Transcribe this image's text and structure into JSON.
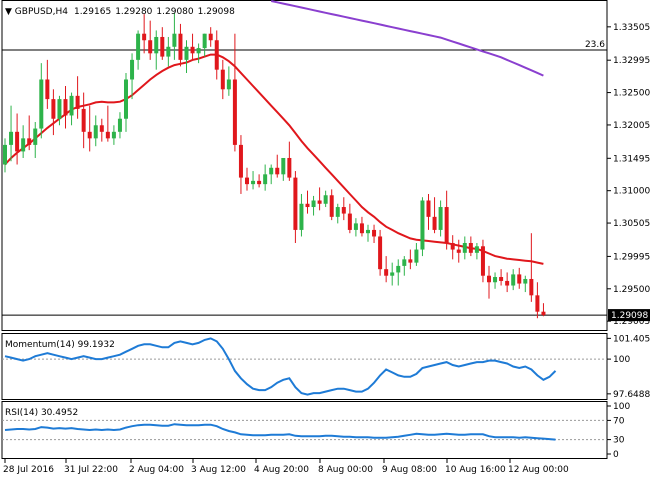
{
  "header": {
    "symbol": "GBPUSD,H4",
    "open": "1.29165",
    "high": "1.29280",
    "low": "1.29080",
    "close": "1.29098"
  },
  "colors": {
    "bull": "#2db34a",
    "bear": "#e0171c",
    "ma_fast": "#e0171c",
    "ma_slow": "#8a3fcf",
    "oscillator": "#1e7bd6",
    "level_line": "#000000",
    "dotted": "#9a9a9a"
  },
  "chart_data": [
    {
      "type": "candlestick",
      "title": "GBPUSD,H4  1.29165 1.29280 1.29080 1.29098",
      "ylim": [
        1.2887,
        1.339
      ],
      "y_ticks": [
        "1.33505",
        "1.32995",
        "1.32500",
        "1.32005",
        "1.31495",
        "1.31000",
        "1.30505",
        "1.29995",
        "1.29500",
        "1.29005"
      ],
      "current_price_label": "1.29098",
      "current_price": 1.29098,
      "fib_label": "23.6",
      "fib_level": 1.3315,
      "candles": [
        {
          "o": 1.314,
          "h": 1.318,
          "l": 1.3128,
          "c": 1.317
        },
        {
          "o": 1.317,
          "h": 1.323,
          "l": 1.3145,
          "c": 1.319
        },
        {
          "o": 1.319,
          "h": 1.3218,
          "l": 1.314,
          "c": 1.316
        },
        {
          "o": 1.316,
          "h": 1.32,
          "l": 1.315,
          "c": 1.318
        },
        {
          "o": 1.318,
          "h": 1.3215,
          "l": 1.3162,
          "c": 1.317
        },
        {
          "o": 1.317,
          "h": 1.3205,
          "l": 1.315,
          "c": 1.3195
        },
        {
          "o": 1.3195,
          "h": 1.3295,
          "l": 1.318,
          "c": 1.327
        },
        {
          "o": 1.327,
          "h": 1.33,
          "l": 1.3225,
          "c": 1.324
        },
        {
          "o": 1.324,
          "h": 1.3255,
          "l": 1.3185,
          "c": 1.321
        },
        {
          "o": 1.321,
          "h": 1.3245,
          "l": 1.32,
          "c": 1.324
        },
        {
          "o": 1.324,
          "h": 1.326,
          "l": 1.3195,
          "c": 1.3215
        },
        {
          "o": 1.3215,
          "h": 1.325,
          "l": 1.32,
          "c": 1.3245
        },
        {
          "o": 1.3245,
          "h": 1.3275,
          "l": 1.321,
          "c": 1.3225
        },
        {
          "o": 1.3225,
          "h": 1.325,
          "l": 1.3165,
          "c": 1.319
        },
        {
          "o": 1.319,
          "h": 1.323,
          "l": 1.316,
          "c": 1.318
        },
        {
          "o": 1.318,
          "h": 1.3215,
          "l": 1.3168,
          "c": 1.32
        },
        {
          "o": 1.32,
          "h": 1.321,
          "l": 1.3175,
          "c": 1.319
        },
        {
          "o": 1.319,
          "h": 1.323,
          "l": 1.3175,
          "c": 1.318
        },
        {
          "o": 1.318,
          "h": 1.32,
          "l": 1.317,
          "c": 1.319
        },
        {
          "o": 1.319,
          "h": 1.322,
          "l": 1.318,
          "c": 1.321
        },
        {
          "o": 1.321,
          "h": 1.328,
          "l": 1.319,
          "c": 1.327
        },
        {
          "o": 1.327,
          "h": 1.331,
          "l": 1.324,
          "c": 1.33
        },
        {
          "o": 1.33,
          "h": 1.3345,
          "l": 1.3285,
          "c": 1.334
        },
        {
          "o": 1.334,
          "h": 1.337,
          "l": 1.331,
          "c": 1.333
        },
        {
          "o": 1.333,
          "h": 1.336,
          "l": 1.33,
          "c": 1.331
        },
        {
          "o": 1.331,
          "h": 1.3345,
          "l": 1.3285,
          "c": 1.3335
        },
        {
          "o": 1.3335,
          "h": 1.335,
          "l": 1.33,
          "c": 1.3305
        },
        {
          "o": 1.3305,
          "h": 1.3335,
          "l": 1.329,
          "c": 1.332
        },
        {
          "o": 1.332,
          "h": 1.3372,
          "l": 1.33,
          "c": 1.334
        },
        {
          "o": 1.334,
          "h": 1.3355,
          "l": 1.329,
          "c": 1.33
        },
        {
          "o": 1.33,
          "h": 1.333,
          "l": 1.328,
          "c": 1.332
        },
        {
          "o": 1.332,
          "h": 1.334,
          "l": 1.33,
          "c": 1.331
        },
        {
          "o": 1.331,
          "h": 1.3325,
          "l": 1.3295,
          "c": 1.3318
        },
        {
          "o": 1.3318,
          "h": 1.334,
          "l": 1.3305,
          "c": 1.334
        },
        {
          "o": 1.334,
          "h": 1.335,
          "l": 1.332,
          "c": 1.333
        },
        {
          "o": 1.333,
          "h": 1.3345,
          "l": 1.327,
          "c": 1.3285
        },
        {
          "o": 1.3285,
          "h": 1.33,
          "l": 1.324,
          "c": 1.3255
        },
        {
          "o": 1.3255,
          "h": 1.329,
          "l": 1.3245,
          "c": 1.327
        },
        {
          "o": 1.327,
          "h": 1.334,
          "l": 1.316,
          "c": 1.317
        },
        {
          "o": 1.317,
          "h": 1.3185,
          "l": 1.3095,
          "c": 1.312
        },
        {
          "o": 1.312,
          "h": 1.3135,
          "l": 1.31,
          "c": 1.311
        },
        {
          "o": 1.311,
          "h": 1.313,
          "l": 1.3102,
          "c": 1.3115
        },
        {
          "o": 1.3115,
          "h": 1.3125,
          "l": 1.3105,
          "c": 1.311
        },
        {
          "o": 1.311,
          "h": 1.314,
          "l": 1.31,
          "c": 1.3125
        },
        {
          "o": 1.3125,
          "h": 1.314,
          "l": 1.311,
          "c": 1.3135
        },
        {
          "o": 1.3135,
          "h": 1.3155,
          "l": 1.312,
          "c": 1.3125
        },
        {
          "o": 1.3125,
          "h": 1.3145,
          "l": 1.3115,
          "c": 1.315
        },
        {
          "o": 1.315,
          "h": 1.3175,
          "l": 1.3115,
          "c": 1.312
        },
        {
          "o": 1.312,
          "h": 1.313,
          "l": 1.302,
          "c": 1.304
        },
        {
          "o": 1.304,
          "h": 1.3095,
          "l": 1.303,
          "c": 1.308
        },
        {
          "o": 1.308,
          "h": 1.31,
          "l": 1.3065,
          "c": 1.3075
        },
        {
          "o": 1.3075,
          "h": 1.3092,
          "l": 1.3062,
          "c": 1.3085
        },
        {
          "o": 1.3085,
          "h": 1.3105,
          "l": 1.307,
          "c": 1.308
        },
        {
          "o": 1.308,
          "h": 1.31,
          "l": 1.3075,
          "c": 1.3093
        },
        {
          "o": 1.3093,
          "h": 1.3102,
          "l": 1.3055,
          "c": 1.306
        },
        {
          "o": 1.306,
          "h": 1.308,
          "l": 1.305,
          "c": 1.3075
        },
        {
          "o": 1.3075,
          "h": 1.309,
          "l": 1.3055,
          "c": 1.3065
        },
        {
          "o": 1.3065,
          "h": 1.308,
          "l": 1.3035,
          "c": 1.304
        },
        {
          "o": 1.304,
          "h": 1.3058,
          "l": 1.303,
          "c": 1.305
        },
        {
          "o": 1.305,
          "h": 1.306,
          "l": 1.303,
          "c": 1.3035
        },
        {
          "o": 1.3035,
          "h": 1.3048,
          "l": 1.3022,
          "c": 1.304
        },
        {
          "o": 1.304,
          "h": 1.3048,
          "l": 1.302,
          "c": 1.303
        },
        {
          "o": 1.303,
          "h": 1.304,
          "l": 1.297,
          "c": 1.298
        },
        {
          "o": 1.298,
          "h": 1.3,
          "l": 1.296,
          "c": 1.297
        },
        {
          "o": 1.297,
          "h": 1.299,
          "l": 1.2955,
          "c": 1.2975
        },
        {
          "o": 1.2975,
          "h": 1.2995,
          "l": 1.2955,
          "c": 1.2985
        },
        {
          "o": 1.2985,
          "h": 1.3,
          "l": 1.297,
          "c": 1.2995
        },
        {
          "o": 1.2995,
          "h": 1.301,
          "l": 1.298,
          "c": 1.299
        },
        {
          "o": 1.299,
          "h": 1.302,
          "l": 1.2985,
          "c": 1.301
        },
        {
          "o": 1.301,
          "h": 1.309,
          "l": 1.3,
          "c": 1.3085
        },
        {
          "o": 1.3085,
          "h": 1.3095,
          "l": 1.304,
          "c": 1.306
        },
        {
          "o": 1.306,
          "h": 1.309,
          "l": 1.3035,
          "c": 1.304
        },
        {
          "o": 1.304,
          "h": 1.3085,
          "l": 1.303,
          "c": 1.3075
        },
        {
          "o": 1.3075,
          "h": 1.31,
          "l": 1.301,
          "c": 1.302
        },
        {
          "o": 1.302,
          "h": 1.3032,
          "l": 1.2995,
          "c": 1.301
        },
        {
          "o": 1.301,
          "h": 1.3025,
          "l": 1.299,
          "c": 1.3005
        },
        {
          "o": 1.3005,
          "h": 1.303,
          "l": 1.2995,
          "c": 1.302
        },
        {
          "o": 1.302,
          "h": 1.303,
          "l": 1.3,
          "c": 1.3005
        },
        {
          "o": 1.3005,
          "h": 1.302,
          "l": 1.2995,
          "c": 1.3015
        },
        {
          "o": 1.3015,
          "h": 1.3025,
          "l": 1.296,
          "c": 1.297
        },
        {
          "o": 1.297,
          "h": 1.2985,
          "l": 1.2935,
          "c": 1.296
        },
        {
          "o": 1.296,
          "h": 1.2975,
          "l": 1.295,
          "c": 1.2968
        },
        {
          "o": 1.2968,
          "h": 1.298,
          "l": 1.2955,
          "c": 1.2962
        },
        {
          "o": 1.2962,
          "h": 1.2975,
          "l": 1.2945,
          "c": 1.2955
        },
        {
          "o": 1.2955,
          "h": 1.298,
          "l": 1.2948,
          "c": 1.2972
        },
        {
          "o": 1.2972,
          "h": 1.2982,
          "l": 1.295,
          "c": 1.2958
        },
        {
          "o": 1.2958,
          "h": 1.297,
          "l": 1.2945,
          "c": 1.2965
        },
        {
          "o": 1.2965,
          "h": 1.3035,
          "l": 1.293,
          "c": 1.294
        },
        {
          "o": 1.294,
          "h": 1.296,
          "l": 1.2905,
          "c": 1.2915
        },
        {
          "o": 1.2915,
          "h": 1.2928,
          "l": 1.2908,
          "c": 1.291
        }
      ],
      "ma_fast": [
        1.314,
        1.315,
        1.3158,
        1.3165,
        1.3172,
        1.318,
        1.3188,
        1.3196,
        1.3203,
        1.321,
        1.3217,
        1.3224,
        1.3228,
        1.323,
        1.3232,
        1.3235,
        1.3236,
        1.3235,
        1.3235,
        1.3236,
        1.324,
        1.3246,
        1.3254,
        1.3262,
        1.327,
        1.3277,
        1.3283,
        1.3288,
        1.3292,
        1.3294,
        1.3296,
        1.33,
        1.3302,
        1.3305,
        1.3308,
        1.3308,
        1.3304,
        1.3298,
        1.329,
        1.328,
        1.327,
        1.326,
        1.325,
        1.324,
        1.323,
        1.322,
        1.321,
        1.32,
        1.3188,
        1.3176,
        1.3165,
        1.3155,
        1.3145,
        1.3135,
        1.3125,
        1.3115,
        1.3105,
        1.3095,
        1.3085,
        1.3075,
        1.3067,
        1.306,
        1.3052,
        1.3045,
        1.304,
        1.3035,
        1.3031,
        1.3027,
        1.3025,
        1.3024,
        1.3023,
        1.3022,
        1.3021,
        1.302,
        1.3018,
        1.3016,
        1.3014,
        1.3012,
        1.3011,
        1.3008,
        1.3004,
        1.3,
        1.2998,
        1.2996,
        1.2995,
        1.2994,
        1.2993,
        1.2992,
        1.299,
        1.2988
      ],
      "ma_slow": [
        1.339,
        1.3388,
        1.3386,
        1.3384,
        1.3382,
        1.338,
        1.3378,
        1.3376,
        1.3374,
        1.3372,
        1.337,
        1.3368,
        1.3366,
        1.3364,
        1.3362,
        1.336,
        1.3358,
        1.3356,
        1.3354,
        1.3352,
        1.335,
        1.3348,
        1.3346,
        1.3344,
        1.3342,
        1.334,
        1.3338,
        1.3336,
        1.3334,
        1.3331,
        1.3328,
        1.3325,
        1.3322,
        1.3319,
        1.3316,
        1.3313,
        1.331,
        1.3307,
        1.3304,
        1.33,
        1.3296,
        1.3292,
        1.3288,
        1.3284,
        1.328,
        1.3276
      ]
    },
    {
      "type": "line",
      "title": "Momentum(14) 99.1932",
      "y_ticks": [
        "101.4053",
        "100",
        "97.6488"
      ],
      "ylim": [
        97.3,
        101.7
      ],
      "reference_level": 100,
      "values": [
        100.2,
        100.1,
        100.0,
        99.9,
        100.0,
        100.2,
        100.3,
        100.4,
        100.3,
        100.2,
        100.1,
        100.0,
        100.1,
        100.2,
        100.1,
        100.0,
        100.0,
        100.1,
        100.2,
        100.3,
        100.5,
        100.7,
        100.9,
        101.0,
        101.0,
        100.9,
        100.8,
        100.8,
        101.1,
        101.2,
        101.1,
        101.0,
        101.1,
        101.3,
        101.4,
        101.2,
        100.7,
        100.0,
        99.2,
        98.7,
        98.3,
        98.0,
        97.9,
        97.9,
        98.1,
        98.4,
        98.6,
        98.7,
        98.1,
        97.7,
        97.6,
        97.7,
        97.7,
        97.8,
        97.9,
        98.0,
        98.0,
        97.9,
        97.8,
        97.8,
        98.0,
        98.4,
        98.9,
        99.3,
        99.1,
        98.9,
        98.8,
        98.8,
        99.0,
        99.4,
        99.5,
        99.6,
        99.7,
        99.8,
        99.6,
        99.5,
        99.6,
        99.7,
        99.8,
        99.8,
        99.9,
        99.9,
        99.8,
        99.7,
        99.5,
        99.4,
        99.5,
        99.3,
        98.9,
        98.6,
        98.8,
        99.2
      ]
    },
    {
      "type": "line",
      "title": "RSI(14) 30.4952",
      "y_ticks": [
        "100",
        "70",
        "30",
        "0"
      ],
      "ylim": [
        0,
        100
      ],
      "levels": [
        70,
        30
      ],
      "values": [
        50,
        51,
        52,
        52,
        51,
        52,
        56,
        55,
        53,
        54,
        53,
        54,
        52,
        51,
        50,
        51,
        50,
        51,
        50,
        51,
        55,
        58,
        60,
        61,
        61,
        60,
        59,
        59,
        62,
        61,
        60,
        60,
        60,
        61,
        61,
        58,
        52,
        48,
        45,
        41,
        40,
        39,
        39,
        39,
        40,
        40,
        40,
        41,
        38,
        37,
        37,
        37,
        37,
        38,
        38,
        37,
        36,
        36,
        35,
        35,
        35,
        34,
        34,
        34,
        35,
        36,
        38,
        40,
        42,
        41,
        40,
        40,
        41,
        42,
        41,
        40,
        40,
        41,
        41,
        41,
        37,
        35,
        35,
        35,
        35,
        34,
        35,
        34,
        33,
        32,
        31,
        30
      ]
    }
  ],
  "x_axis_labels": [
    "28 Jul 2016",
    "31 Jul 22:00",
    "2 Aug 04:00",
    "3 Aug 12:00",
    "4 Aug 20:00",
    "8 Aug 00:00",
    "9 Aug 08:00",
    "10 Aug 16:00",
    "12 Aug 00:00"
  ]
}
